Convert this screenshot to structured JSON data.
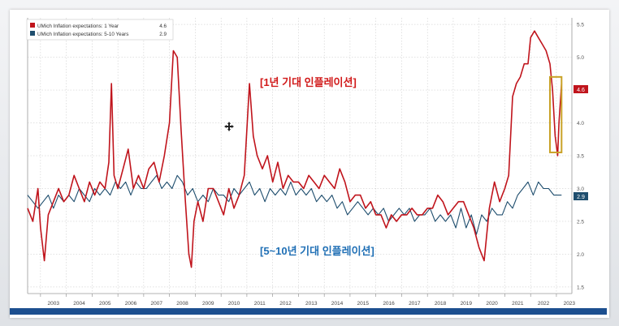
{
  "chart_data": {
    "type": "line",
    "legend": [
      {
        "label": "UMich Inflation expectations: 1 Year",
        "last": "4.6",
        "color": "#c0141c"
      },
      {
        "label": "UMich Inflation expectations: 5-10 Years",
        "last": "2.9",
        "color": "#1f4e6e"
      }
    ],
    "annotation_1y": "[1년 기대 인플레이션]",
    "annotation_5y": "[5~10년 기대 인플레이션]",
    "y_ticks": [
      "5.5",
      "5.0",
      "4.5",
      "4.0",
      "3.5",
      "3.0",
      "2.5",
      "2.0",
      "1.5"
    ],
    "x_ticks": [
      "2003",
      "2004",
      "2005",
      "2006",
      "2007",
      "2008",
      "2009",
      "2010",
      "2011",
      "2012",
      "2013",
      "2014",
      "2015",
      "2016",
      "2017",
      "2018",
      "2019",
      "2020",
      "2021",
      "2022",
      "2023"
    ],
    "ylim": [
      1.4,
      5.6
    ],
    "xlim": [
      2002.5,
      2023.6
    ],
    "last_labels": {
      "one_year": "4.6",
      "five_ten": "2.9"
    },
    "highlight_x": [
      2022.75,
      2023.2
    ],
    "highlight_y": [
      3.55,
      4.7
    ],
    "series": [
      {
        "name": "UMich Inflation expectations: 1 Year",
        "color": "#c0141c",
        "x": [
          2002.5,
          2002.7,
          2002.9,
          2003.0,
          2003.15,
          2003.3,
          2003.5,
          2003.7,
          2003.9,
          2004.1,
          2004.3,
          2004.5,
          2004.7,
          2004.9,
          2005.1,
          2005.3,
          2005.5,
          2005.65,
          2005.75,
          2005.85,
          2006.0,
          2006.2,
          2006.4,
          2006.6,
          2006.8,
          2007.0,
          2007.2,
          2007.4,
          2007.6,
          2007.8,
          2008.0,
          2008.15,
          2008.3,
          2008.45,
          2008.6,
          2008.75,
          2008.85,
          2008.95,
          2009.1,
          2009.3,
          2009.5,
          2009.7,
          2009.9,
          2010.1,
          2010.3,
          2010.5,
          2010.7,
          2010.9,
          2011.1,
          2011.25,
          2011.4,
          2011.6,
          2011.8,
          2012.0,
          2012.2,
          2012.4,
          2012.6,
          2012.8,
          2013.0,
          2013.2,
          2013.4,
          2013.6,
          2013.8,
          2014.0,
          2014.2,
          2014.4,
          2014.6,
          2014.8,
          2015.0,
          2015.2,
          2015.4,
          2015.6,
          2015.8,
          2016.0,
          2016.2,
          2016.4,
          2016.6,
          2016.8,
          2017.0,
          2017.2,
          2017.4,
          2017.6,
          2017.8,
          2018.0,
          2018.2,
          2018.4,
          2018.6,
          2018.8,
          2019.0,
          2019.2,
          2019.4,
          2019.6,
          2019.8,
          2020.0,
          2020.2,
          2020.4,
          2020.6,
          2020.8,
          2021.0,
          2021.15,
          2021.3,
          2021.45,
          2021.6,
          2021.75,
          2021.9,
          2022.0,
          2022.15,
          2022.3,
          2022.45,
          2022.6,
          2022.75,
          2022.85,
          2022.95,
          2023.05,
          2023.1,
          2023.2
        ],
        "values": [
          2.7,
          2.5,
          3.0,
          2.4,
          1.9,
          2.6,
          2.8,
          3.0,
          2.8,
          2.9,
          3.2,
          3.0,
          2.8,
          3.1,
          2.9,
          3.1,
          3.0,
          3.4,
          4.6,
          3.2,
          3.0,
          3.3,
          3.6,
          3.0,
          3.2,
          3.0,
          3.3,
          3.4,
          3.1,
          3.5,
          4.0,
          5.1,
          5.0,
          3.9,
          2.9,
          2.0,
          1.8,
          2.5,
          2.8,
          2.5,
          3.0,
          3.0,
          2.8,
          2.6,
          3.0,
          2.7,
          2.9,
          3.2,
          4.6,
          3.8,
          3.5,
          3.3,
          3.5,
          3.1,
          3.4,
          3.0,
          3.2,
          3.1,
          3.1,
          3.0,
          3.2,
          3.1,
          3.0,
          3.2,
          3.1,
          3.0,
          3.3,
          3.1,
          2.8,
          2.9,
          2.9,
          2.7,
          2.8,
          2.6,
          2.6,
          2.4,
          2.6,
          2.5,
          2.6,
          2.6,
          2.7,
          2.6,
          2.6,
          2.7,
          2.7,
          2.9,
          2.8,
          2.6,
          2.7,
          2.8,
          2.8,
          2.6,
          2.4,
          2.1,
          1.9,
          2.7,
          3.1,
          2.8,
          3.0,
          3.2,
          4.4,
          4.6,
          4.7,
          4.9,
          4.9,
          5.3,
          5.4,
          5.3,
          5.2,
          5.1,
          4.9,
          4.5,
          3.8,
          3.5,
          4.0,
          4.6
        ]
      },
      {
        "name": "UMich Inflation expectations: 5-10 Years",
        "color": "#1f4e6e",
        "x": [
          2002.5,
          2002.7,
          2002.9,
          2003.1,
          2003.3,
          2003.5,
          2003.7,
          2003.9,
          2004.1,
          2004.3,
          2004.5,
          2004.7,
          2004.9,
          2005.1,
          2005.3,
          2005.5,
          2005.7,
          2005.9,
          2006.1,
          2006.3,
          2006.5,
          2006.7,
          2006.9,
          2007.1,
          2007.3,
          2007.5,
          2007.7,
          2007.9,
          2008.1,
          2008.3,
          2008.5,
          2008.7,
          2008.9,
          2009.1,
          2009.3,
          2009.5,
          2009.7,
          2009.9,
          2010.1,
          2010.3,
          2010.5,
          2010.7,
          2010.9,
          2011.1,
          2011.3,
          2011.5,
          2011.7,
          2011.9,
          2012.1,
          2012.3,
          2012.5,
          2012.7,
          2012.9,
          2013.1,
          2013.3,
          2013.5,
          2013.7,
          2013.9,
          2014.1,
          2014.3,
          2014.5,
          2014.7,
          2014.9,
          2015.1,
          2015.3,
          2015.5,
          2015.7,
          2015.9,
          2016.1,
          2016.3,
          2016.5,
          2016.7,
          2016.9,
          2017.1,
          2017.3,
          2017.5,
          2017.7,
          2017.9,
          2018.1,
          2018.3,
          2018.5,
          2018.7,
          2018.9,
          2019.1,
          2019.3,
          2019.5,
          2019.7,
          2019.9,
          2020.1,
          2020.3,
          2020.5,
          2020.7,
          2020.9,
          2021.1,
          2021.3,
          2021.5,
          2021.7,
          2021.9,
          2022.1,
          2022.3,
          2022.5,
          2022.7,
          2022.9,
          2023.1,
          2023.2
        ],
        "values": [
          2.9,
          2.8,
          2.7,
          2.8,
          2.9,
          2.7,
          2.9,
          2.8,
          2.9,
          2.8,
          3.0,
          2.9,
          2.8,
          3.0,
          2.9,
          3.0,
          2.9,
          3.1,
          3.0,
          3.1,
          2.9,
          3.1,
          3.0,
          3.0,
          3.1,
          3.2,
          3.0,
          3.1,
          3.0,
          3.2,
          3.1,
          2.9,
          3.0,
          2.8,
          2.9,
          2.8,
          3.0,
          2.9,
          2.9,
          2.8,
          3.0,
          2.9,
          3.0,
          3.1,
          2.9,
          3.0,
          2.8,
          3.0,
          2.9,
          3.0,
          2.9,
          3.1,
          2.9,
          3.0,
          2.9,
          3.0,
          2.8,
          2.9,
          2.8,
          2.9,
          2.7,
          2.8,
          2.6,
          2.7,
          2.8,
          2.7,
          2.6,
          2.7,
          2.6,
          2.7,
          2.5,
          2.6,
          2.7,
          2.6,
          2.7,
          2.5,
          2.6,
          2.6,
          2.7,
          2.5,
          2.6,
          2.5,
          2.6,
          2.4,
          2.7,
          2.4,
          2.6,
          2.3,
          2.6,
          2.5,
          2.7,
          2.6,
          2.6,
          2.8,
          2.7,
          2.9,
          3.0,
          3.1,
          2.9,
          3.1,
          3.0,
          3.0,
          2.9,
          2.9,
          2.9
        ]
      }
    ]
  }
}
